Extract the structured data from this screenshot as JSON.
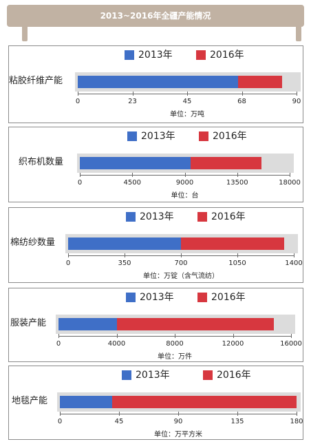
{
  "banner": {
    "title": "2013~2016年全疆产能情况"
  },
  "colors": {
    "y2013": "#3f6fc7",
    "y2016": "#d7373f",
    "track": "#dcdcdc"
  },
  "chart_data": [
    {
      "type": "bar",
      "legend": [
        "2013年",
        "2016年"
      ],
      "category": "粘胶纤维产能",
      "series": [
        {
          "name": "2013年",
          "values": [
            66
          ]
        },
        {
          "name": "2016年",
          "values": [
            84
          ]
        }
      ],
      "xlim": [
        0,
        90
      ],
      "ticks": [
        "0",
        "23",
        "45",
        "68",
        "90"
      ],
      "unit": "单位：万吨"
    },
    {
      "type": "bar",
      "legend": [
        "2013年",
        "2016年"
      ],
      "category": "织布机数量",
      "series": [
        {
          "name": "2013年",
          "values": [
            9500
          ]
        },
        {
          "name": "2016年",
          "values": [
            15600
          ]
        }
      ],
      "xlim": [
        0,
        18000
      ],
      "ticks": [
        "0",
        "4500",
        "9000",
        "13500",
        "18000"
      ],
      "unit": "单位：台"
    },
    {
      "type": "bar",
      "legend": [
        "2013年",
        "2016年"
      ],
      "category": "棉纺纱数量",
      "series": [
        {
          "name": "2013年",
          "values": [
            700
          ]
        },
        {
          "name": "2016年",
          "values": [
            1340
          ]
        }
      ],
      "xlim": [
        0,
        1400
      ],
      "ticks": [
        "0",
        "350",
        "700",
        "1050",
        "1400"
      ],
      "unit": "单位：万锭（含气流纺）"
    },
    {
      "type": "bar",
      "legend": [
        "2013年",
        "2016年"
      ],
      "category": "服装产能",
      "series": [
        {
          "name": "2013年",
          "values": [
            4000
          ]
        },
        {
          "name": "2016年",
          "values": [
            14800
          ]
        }
      ],
      "xlim": [
        0,
        16000
      ],
      "ticks": [
        "0",
        "4000",
        "8000",
        "12000",
        "16000"
      ],
      "unit": "单位：万件"
    },
    {
      "type": "bar",
      "legend": [
        "2013年",
        "2016年"
      ],
      "category": "地毯产能",
      "series": [
        {
          "name": "2013年",
          "values": [
            40
          ]
        },
        {
          "name": "2016年",
          "values": [
            180
          ]
        }
      ],
      "xlim": [
        0,
        180
      ],
      "ticks": [
        "0",
        "45",
        "90",
        "135",
        "180"
      ],
      "unit": "单位：万平方米"
    }
  ]
}
